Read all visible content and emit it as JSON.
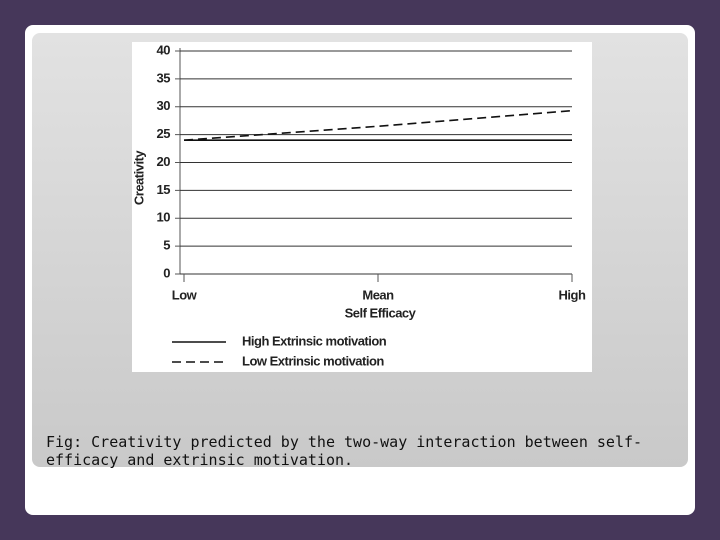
{
  "chart_data": {
    "type": "line",
    "categories": [
      "Low",
      "Mean",
      "High"
    ],
    "series": [
      {
        "name": "High Extrinsic motivation",
        "color": "#111111",
        "dash": "solid",
        "values": [
          24,
          24,
          24
        ]
      },
      {
        "name": "Low Extrinsic motivation",
        "color": "#111111",
        "dash": "dashed",
        "values": [
          24,
          26.5,
          29.3
        ]
      }
    ],
    "x_label": "Self Efficacy",
    "y_label": "Creativity",
    "ylim": [
      0,
      40
    ],
    "yticks": [
      0,
      5,
      10,
      15,
      20,
      25,
      30,
      35,
      40
    ],
    "grid": true
  },
  "caption": "Fig: Creativity predicted by the two-way interaction between self-efficacy and extrinsic motivation."
}
